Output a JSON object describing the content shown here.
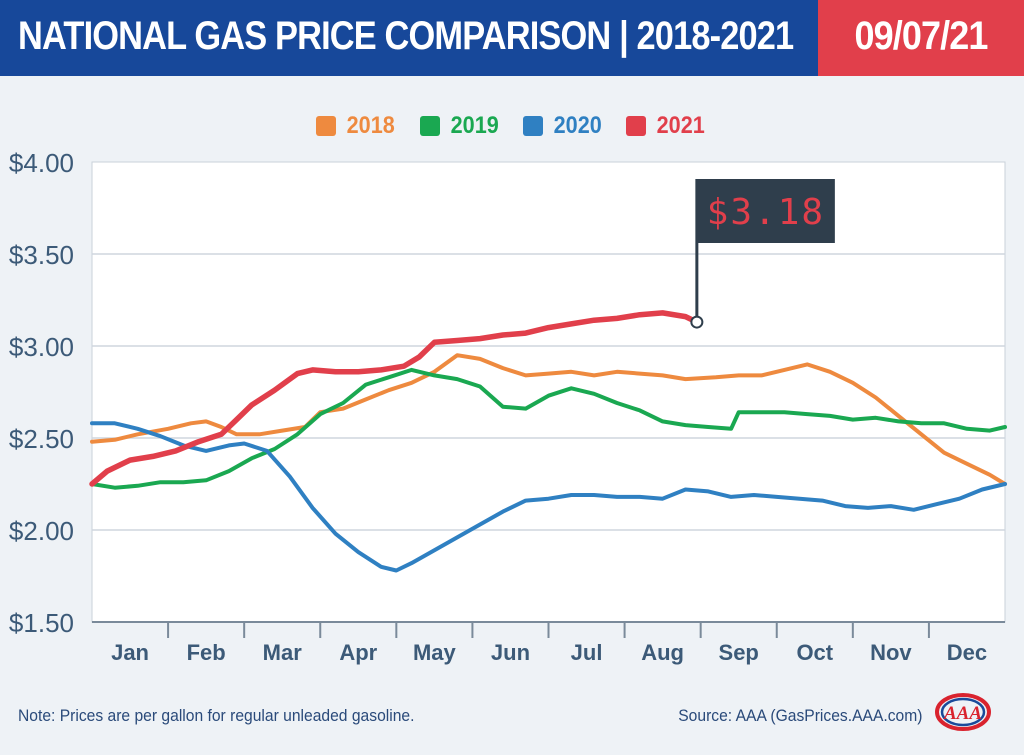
{
  "header": {
    "title": "NATIONAL GAS PRICE COMPARISON | 2018-2021",
    "date": "09/07/21"
  },
  "colors": {
    "header_bg": "#17489a",
    "date_bg": "#e13f4b",
    "axis_text": "#3c5a78"
  },
  "legend": [
    {
      "label": "2018",
      "color": "#ee8a3f"
    },
    {
      "label": "2019",
      "color": "#1aa851"
    },
    {
      "label": "2020",
      "color": "#2f80c2"
    },
    {
      "label": "2021",
      "color": "#e13f4b"
    }
  ],
  "callout": {
    "label": "$3.18",
    "bg": "#2f3e4c",
    "text_color": "#e13f4b"
  },
  "footer": {
    "note": "Note: Prices are per gallon for regular unleaded gasoline.",
    "source": "Source: AAA (GasPrices.AAA.com)",
    "logo_text": "AAA"
  },
  "chart_data": {
    "type": "line",
    "x_unit": "month",
    "x_ticks": [
      "Jan",
      "Feb",
      "Mar",
      "Apr",
      "May",
      "Jun",
      "Jul",
      "Aug",
      "Sep",
      "Oct",
      "Nov",
      "Dec"
    ],
    "xlim": [
      0,
      12
    ],
    "y_ticks": [
      "$4.00",
      "$3.50",
      "$3.00",
      "$2.50",
      "$2.00",
      "$1.50"
    ],
    "ylim": [
      1.5,
      4.0
    ],
    "grid": true,
    "legend_position": "top-center",
    "series": [
      {
        "name": "2018",
        "color": "#ee8a3f",
        "points": [
          [
            0,
            2.48
          ],
          [
            0.3,
            2.49
          ],
          [
            0.6,
            2.52
          ],
          [
            1.0,
            2.55
          ],
          [
            1.3,
            2.58
          ],
          [
            1.5,
            2.59
          ],
          [
            1.7,
            2.56
          ],
          [
            1.9,
            2.52
          ],
          [
            2.2,
            2.52
          ],
          [
            2.5,
            2.54
          ],
          [
            2.8,
            2.56
          ],
          [
            3.0,
            2.64
          ],
          [
            3.3,
            2.66
          ],
          [
            3.6,
            2.71
          ],
          [
            3.9,
            2.76
          ],
          [
            4.2,
            2.8
          ],
          [
            4.5,
            2.86
          ],
          [
            4.8,
            2.95
          ],
          [
            5.1,
            2.93
          ],
          [
            5.4,
            2.88
          ],
          [
            5.7,
            2.84
          ],
          [
            6.0,
            2.85
          ],
          [
            6.3,
            2.86
          ],
          [
            6.6,
            2.84
          ],
          [
            6.9,
            2.86
          ],
          [
            7.2,
            2.85
          ],
          [
            7.5,
            2.84
          ],
          [
            7.8,
            2.82
          ],
          [
            8.2,
            2.83
          ],
          [
            8.5,
            2.84
          ],
          [
            8.8,
            2.84
          ],
          [
            9.1,
            2.87
          ],
          [
            9.4,
            2.9
          ],
          [
            9.7,
            2.86
          ],
          [
            10.0,
            2.8
          ],
          [
            10.3,
            2.72
          ],
          [
            10.6,
            2.62
          ],
          [
            10.9,
            2.52
          ],
          [
            11.2,
            2.42
          ],
          [
            11.5,
            2.36
          ],
          [
            11.8,
            2.3
          ],
          [
            12.0,
            2.25
          ]
        ]
      },
      {
        "name": "2019",
        "color": "#1aa851",
        "points": [
          [
            0,
            2.25
          ],
          [
            0.3,
            2.23
          ],
          [
            0.6,
            2.24
          ],
          [
            0.9,
            2.26
          ],
          [
            1.2,
            2.26
          ],
          [
            1.5,
            2.27
          ],
          [
            1.8,
            2.32
          ],
          [
            2.1,
            2.39
          ],
          [
            2.4,
            2.44
          ],
          [
            2.7,
            2.52
          ],
          [
            3.0,
            2.63
          ],
          [
            3.3,
            2.69
          ],
          [
            3.6,
            2.79
          ],
          [
            3.9,
            2.83
          ],
          [
            4.2,
            2.87
          ],
          [
            4.5,
            2.84
          ],
          [
            4.8,
            2.82
          ],
          [
            5.1,
            2.78
          ],
          [
            5.4,
            2.67
          ],
          [
            5.7,
            2.66
          ],
          [
            6.0,
            2.73
          ],
          [
            6.3,
            2.77
          ],
          [
            6.6,
            2.74
          ],
          [
            6.9,
            2.69
          ],
          [
            7.2,
            2.65
          ],
          [
            7.5,
            2.59
          ],
          [
            7.8,
            2.57
          ],
          [
            8.1,
            2.56
          ],
          [
            8.4,
            2.55
          ],
          [
            8.5,
            2.64
          ],
          [
            8.8,
            2.64
          ],
          [
            9.1,
            2.64
          ],
          [
            9.4,
            2.63
          ],
          [
            9.7,
            2.62
          ],
          [
            10.0,
            2.6
          ],
          [
            10.3,
            2.61
          ],
          [
            10.6,
            2.59
          ],
          [
            10.9,
            2.58
          ],
          [
            11.2,
            2.58
          ],
          [
            11.5,
            2.55
          ],
          [
            11.8,
            2.54
          ],
          [
            12.0,
            2.56
          ]
        ]
      },
      {
        "name": "2020",
        "color": "#2f80c2",
        "points": [
          [
            0,
            2.58
          ],
          [
            0.3,
            2.58
          ],
          [
            0.6,
            2.55
          ],
          [
            0.9,
            2.51
          ],
          [
            1.2,
            2.46
          ],
          [
            1.5,
            2.43
          ],
          [
            1.8,
            2.46
          ],
          [
            2.0,
            2.47
          ],
          [
            2.3,
            2.43
          ],
          [
            2.6,
            2.29
          ],
          [
            2.9,
            2.12
          ],
          [
            3.2,
            1.98
          ],
          [
            3.5,
            1.88
          ],
          [
            3.8,
            1.8
          ],
          [
            4.0,
            1.78
          ],
          [
            4.2,
            1.82
          ],
          [
            4.5,
            1.89
          ],
          [
            4.8,
            1.96
          ],
          [
            5.1,
            2.03
          ],
          [
            5.4,
            2.1
          ],
          [
            5.7,
            2.16
          ],
          [
            6.0,
            2.17
          ],
          [
            6.3,
            2.19
          ],
          [
            6.6,
            2.19
          ],
          [
            6.9,
            2.18
          ],
          [
            7.2,
            2.18
          ],
          [
            7.5,
            2.17
          ],
          [
            7.8,
            2.22
          ],
          [
            8.1,
            2.21
          ],
          [
            8.4,
            2.18
          ],
          [
            8.7,
            2.19
          ],
          [
            9.0,
            2.18
          ],
          [
            9.3,
            2.17
          ],
          [
            9.6,
            2.16
          ],
          [
            9.9,
            2.13
          ],
          [
            10.2,
            2.12
          ],
          [
            10.5,
            2.13
          ],
          [
            10.8,
            2.11
          ],
          [
            11.1,
            2.14
          ],
          [
            11.4,
            2.17
          ],
          [
            11.7,
            2.22
          ],
          [
            12.0,
            2.25
          ]
        ]
      },
      {
        "name": "2021",
        "color": "#e13f4b",
        "points": [
          [
            0,
            2.25
          ],
          [
            0.2,
            2.32
          ],
          [
            0.5,
            2.38
          ],
          [
            0.8,
            2.4
          ],
          [
            1.1,
            2.43
          ],
          [
            1.4,
            2.48
          ],
          [
            1.7,
            2.52
          ],
          [
            1.9,
            2.6
          ],
          [
            2.1,
            2.68
          ],
          [
            2.4,
            2.76
          ],
          [
            2.7,
            2.85
          ],
          [
            2.9,
            2.87
          ],
          [
            3.2,
            2.86
          ],
          [
            3.5,
            2.86
          ],
          [
            3.8,
            2.87
          ],
          [
            4.1,
            2.89
          ],
          [
            4.3,
            2.94
          ],
          [
            4.5,
            3.02
          ],
          [
            4.8,
            3.03
          ],
          [
            5.1,
            3.04
          ],
          [
            5.4,
            3.06
          ],
          [
            5.7,
            3.07
          ],
          [
            6.0,
            3.1
          ],
          [
            6.3,
            3.12
          ],
          [
            6.6,
            3.14
          ],
          [
            6.9,
            3.15
          ],
          [
            7.2,
            3.17
          ],
          [
            7.5,
            3.18
          ],
          [
            7.8,
            3.16
          ],
          [
            7.95,
            3.13
          ]
        ]
      }
    ]
  }
}
